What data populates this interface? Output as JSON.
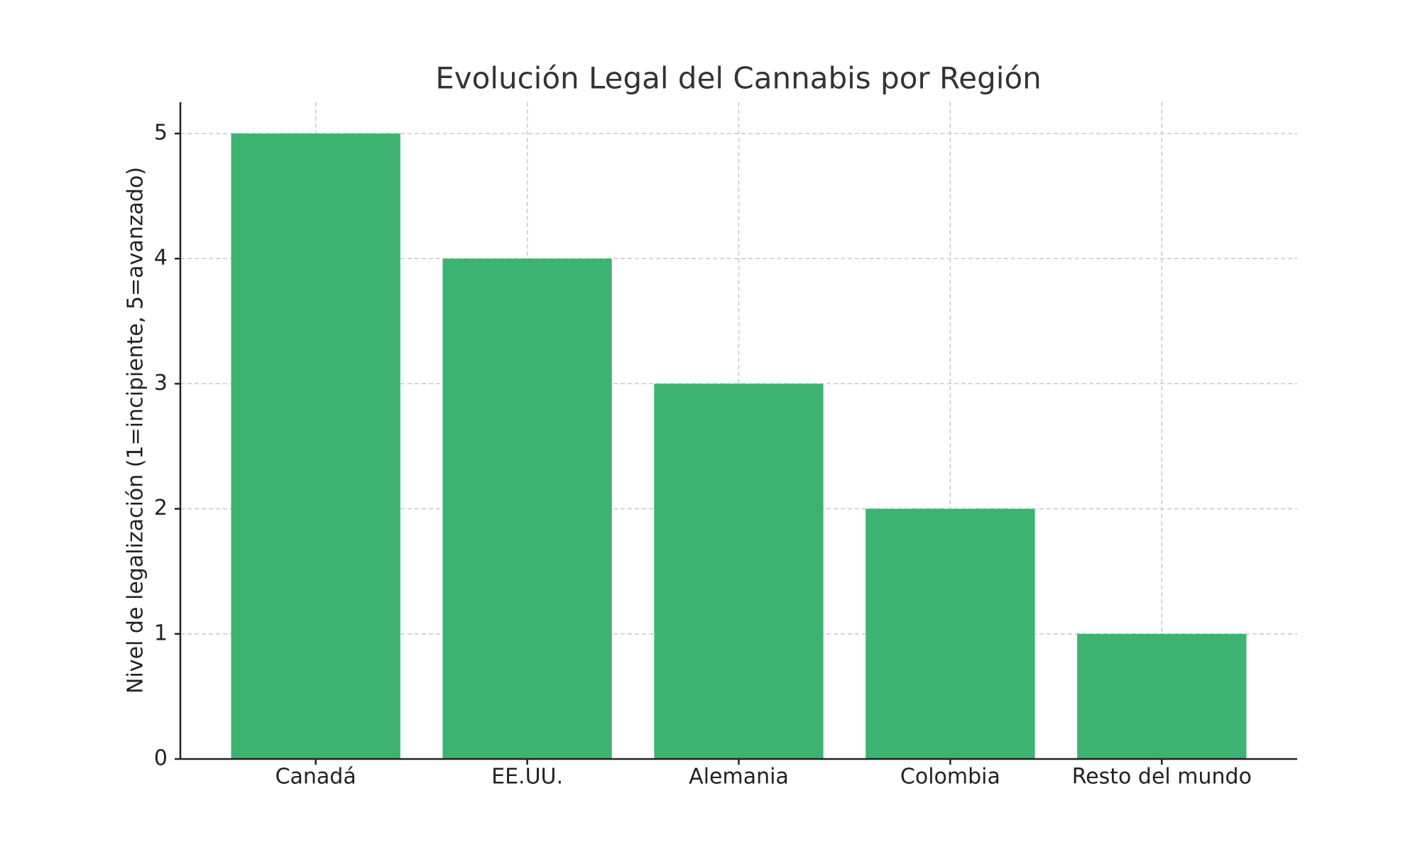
{
  "chart_data": {
    "type": "bar",
    "title": "Evolución Legal del Cannabis por Región",
    "y_label": "Nivel de legalización (1=incipiente, 5=avanzado)",
    "categories": [
      "Canadá",
      "EE.UU.",
      "Alemania",
      "Colombia",
      "Resto del mundo"
    ],
    "values": [
      5,
      4,
      3,
      2,
      1
    ],
    "color": "#3cb371",
    "ylim": [
      0,
      5.25
    ],
    "yticks": [
      0,
      1,
      2,
      3,
      4,
      5
    ],
    "grid": true
  }
}
